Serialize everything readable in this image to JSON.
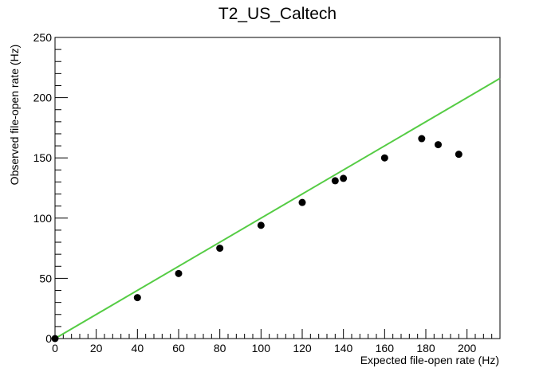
{
  "chart_data": {
    "type": "scatter",
    "title": "T2_US_Caltech",
    "xlabel": "Expected file-open rate (Hz)",
    "ylabel": "Observed file-open rate (Hz)",
    "xlim": [
      0,
      216
    ],
    "ylim": [
      0,
      250
    ],
    "x_ticks": [
      "0",
      "20",
      "40",
      "60",
      "80",
      "100",
      "120",
      "140",
      "160",
      "180",
      "200"
    ],
    "y_ticks": [
      "0",
      "50",
      "100",
      "150",
      "200",
      "250"
    ],
    "grid": false,
    "points": [
      {
        "x": 0,
        "y": 0
      },
      {
        "x": 40,
        "y": 34
      },
      {
        "x": 60,
        "y": 54
      },
      {
        "x": 80,
        "y": 75
      },
      {
        "x": 100,
        "y": 94
      },
      {
        "x": 120,
        "y": 113
      },
      {
        "x": 136,
        "y": 131
      },
      {
        "x": 140,
        "y": 133
      },
      {
        "x": 160,
        "y": 150
      },
      {
        "x": 178,
        "y": 166
      },
      {
        "x": 186,
        "y": 161
      },
      {
        "x": 196,
        "y": 153
      }
    ],
    "reference_line": {
      "x": [
        0,
        216
      ],
      "y": [
        0,
        216
      ],
      "color": "#55cc44"
    },
    "marker_color": "#000000"
  }
}
